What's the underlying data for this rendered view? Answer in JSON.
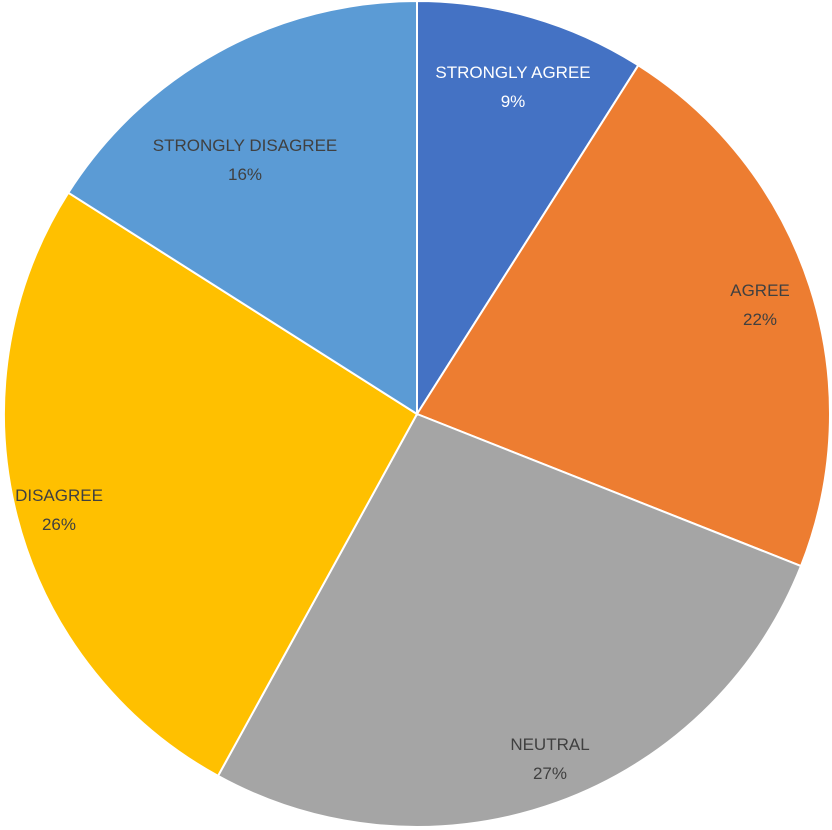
{
  "chart_data": {
    "type": "pie",
    "title": "",
    "categories": [
      "STRONGLY AGREE",
      "AGREE",
      "NEUTRAL",
      "DISAGREE",
      "STRONGLY DISAGREE"
    ],
    "values": [
      9,
      22,
      27,
      26,
      16
    ],
    "value_labels": [
      "9%",
      "22%",
      "27%",
      "26%",
      "16%"
    ],
    "colors": [
      "#4472C4",
      "#ED7D31",
      "#A5A5A5",
      "#FFC000",
      "#5B9BD5"
    ],
    "start": "12 o'clock",
    "direction": "clockwise",
    "legend": "none",
    "data_labels": "category name and percentage"
  }
}
